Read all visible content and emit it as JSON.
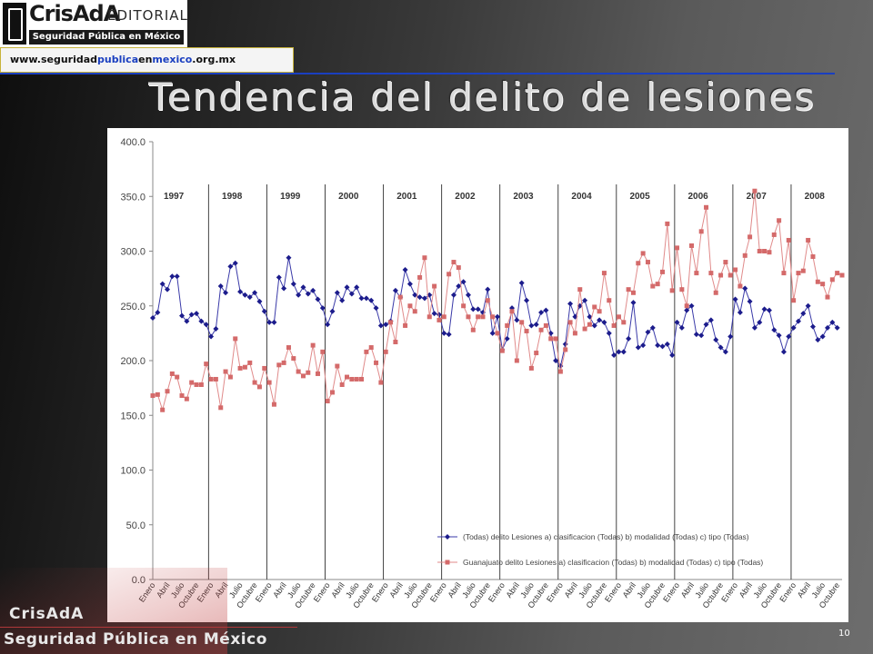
{
  "header": {
    "logo_brand": "CrisAdA",
    "logo_editorial": "EDITORIAL",
    "logo_subtitle": "Seguridad Pública en México",
    "url_parts": [
      "www.seguridad",
      "publica",
      "en",
      "mexico",
      ".org.mx"
    ]
  },
  "slide": {
    "title": "Tendencia del delito de lesiones",
    "page_number": "10"
  },
  "footer": {
    "line1": "CrisAdA",
    "line2": "Seguridad Pública en México"
  },
  "colors": {
    "series_national": "#1c1c8c",
    "series_guanajuato": "#d46a6a",
    "url_accent": "#1a3fc0"
  },
  "chart_data": {
    "type": "line",
    "ylim": [
      0,
      400
    ],
    "yticks": [
      "0.0",
      "50.0",
      "100.0",
      "150.0",
      "200.0",
      "250.0",
      "300.0",
      "350.0",
      "400.0"
    ],
    "year_labels": [
      "1997",
      "1998",
      "1999",
      "2000",
      "2001",
      "2002",
      "2003",
      "2004",
      "2005",
      "2006",
      "2007",
      "2008"
    ],
    "month_tick_labels": [
      "Enero",
      "Abril",
      "Julio",
      "Octubre"
    ],
    "legend_placement": "bottom-right",
    "series": [
      {
        "name": "(Todas) delito Lesiones a) clasificacion (Todas) b) modalidad (Todas) c) tipo (Todas)",
        "marker": "diamond",
        "values": [
          239,
          244,
          270,
          265,
          277,
          277,
          241,
          236,
          242,
          243,
          236,
          233,
          222,
          229,
          268,
          262,
          286,
          289,
          263,
          260,
          258,
          262,
          254,
          245,
          235,
          235,
          276,
          266,
          294,
          270,
          260,
          267,
          261,
          264,
          256,
          248,
          233,
          245,
          262,
          255,
          267,
          261,
          267,
          257,
          257,
          255,
          248,
          232,
          233,
          236,
          264,
          258,
          283,
          270,
          260,
          258,
          257,
          260,
          243,
          242,
          225,
          224,
          260,
          268,
          272,
          260,
          247,
          247,
          244,
          265,
          225,
          240,
          210,
          220,
          248,
          237,
          271,
          255,
          232,
          233,
          244,
          246,
          225,
          200,
          195,
          215,
          252,
          240,
          250,
          255,
          240,
          232,
          237,
          235,
          225,
          205,
          208,
          208,
          220,
          253,
          212,
          214,
          226,
          230,
          214,
          213,
          215,
          205,
          235,
          230,
          246,
          250,
          224,
          223,
          233,
          237,
          219,
          212,
          208,
          222,
          256,
          244,
          266,
          254,
          230,
          235,
          247,
          246,
          228,
          223,
          208,
          222,
          230,
          236,
          243,
          250,
          231,
          219,
          222,
          230,
          235,
          230
        ]
      },
      {
        "name": "Guanajuato delito Lesiones a) clasificacion (Todas) b) modalidad (Todas) c) tipo (Todas)",
        "marker": "square",
        "values": [
          168,
          169,
          155,
          172,
          188,
          185,
          168,
          165,
          180,
          178,
          178,
          197,
          183,
          183,
          157,
          190,
          185,
          220,
          193,
          194,
          198,
          180,
          176,
          193,
          180,
          160,
          196,
          198,
          212,
          202,
          190,
          186,
          189,
          214,
          188,
          208,
          163,
          171,
          195,
          178,
          185,
          183,
          183,
          183,
          208,
          212,
          198,
          180,
          208,
          235,
          217,
          258,
          232,
          250,
          245,
          276,
          294,
          240,
          268,
          237,
          240,
          279,
          290,
          285,
          250,
          240,
          228,
          240,
          240,
          255,
          240,
          225,
          209,
          232,
          245,
          200,
          235,
          227,
          193,
          207,
          228,
          232,
          220,
          220,
          190,
          210,
          235,
          225,
          265,
          229,
          233,
          249,
          245,
          280,
          255,
          232,
          240,
          235,
          265,
          262,
          289,
          298,
          290,
          268,
          270,
          281,
          325,
          264,
          303,
          265,
          250,
          305,
          280,
          318,
          340,
          280,
          262,
          278,
          290,
          278,
          283,
          268,
          296,
          313,
          355,
          300,
          300,
          299,
          315,
          328,
          280,
          310,
          255,
          280,
          282,
          310,
          295,
          272,
          270,
          258,
          274,
          280,
          278
        ]
      }
    ]
  }
}
